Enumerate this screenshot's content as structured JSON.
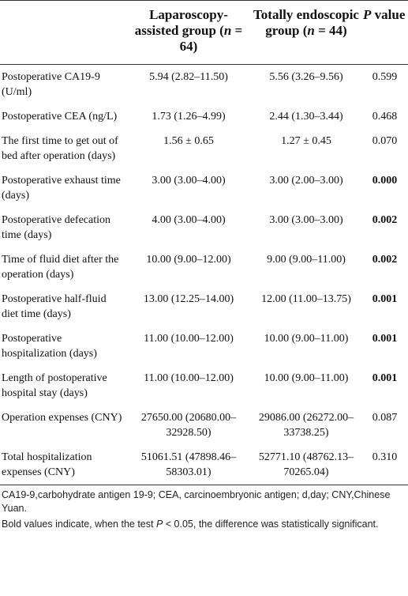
{
  "table": {
    "header": [
      [],
      [
        "Laparoscopy-assisted group (",
        "n",
        " = 64)"
      ],
      [
        "Totally endoscopic group (",
        "n",
        " = 44)"
      ],
      [
        "P",
        " value"
      ]
    ],
    "rows": [
      {
        "label": "Postoperative CA19-9 (U/ml)",
        "a": "5.94 (2.82–11.50)",
        "b": "5.56 (3.26–9.56)",
        "p": "0.599",
        "bold": false
      },
      {
        "label": "Postoperative CEA (ng/L)",
        "a": "1.73 (1.26–4.99)",
        "b": "2.44 (1.30–3.44)",
        "p": "0.468",
        "bold": false
      },
      {
        "label": "The first time to get out of bed after operation (days)",
        "a": "1.56 ± 0.65",
        "b": "1.27 ± 0.45",
        "p": "0.070",
        "bold": false
      },
      {
        "label": "Postoperative exhaust time (days)",
        "a": "3.00 (3.00–4.00)",
        "b": "3.00 (2.00–3.00)",
        "p": "0.000",
        "bold": true
      },
      {
        "label": "Postoperative defecation time (days)",
        "a": "4.00 (3.00–4.00)",
        "b": "3.00 (3.00–3.00)",
        "p": "0.002",
        "bold": true
      },
      {
        "label": "Time of fluid diet after the operation (days)",
        "a": "10.00 (9.00–12.00)",
        "b": "9.00 (9.00–11.00)",
        "p": "0.002",
        "bold": true
      },
      {
        "label": "Postoperative half-fluid diet time (days)",
        "a": "13.00 (12.25–14.00)",
        "b": "12.00 (11.00–13.75)",
        "p": "0.001",
        "bold": true
      },
      {
        "label": "Postoperative hospitalization (days)",
        "a": "11.00 (10.00–12.00)",
        "b": "10.00 (9.00–11.00)",
        "p": "0.001",
        "bold": true
      },
      {
        "label": "Length of postoperative hospital stay (days)",
        "a": "11.00 (10.00–12.00)",
        "b": "10.00 (9.00–11.00)",
        "p": "0.001",
        "bold": true
      },
      {
        "label": "Operation expenses (CNY)",
        "a": "27650.00 (20680.00–32928.50)",
        "b": "29086.00 (26272.00–33738.25)",
        "p": "0.087",
        "bold": false
      },
      {
        "label": "Total hospitalization expenses (CNY)",
        "a": "51061.51 (47898.46–58303.01)",
        "b": "52771.10 (48762.13–70265.04)",
        "p": "0.310",
        "bold": false
      }
    ]
  },
  "footnotes": [
    [
      "CA19-9,carbohydrate antigen 19-9; CEA, carcinoembryonic antigen; d,day; CNY,Chinese Yuan."
    ],
    [
      "Bold values indicate, when the test ",
      "P",
      " < 0.05, the difference was statistically significant."
    ]
  ]
}
